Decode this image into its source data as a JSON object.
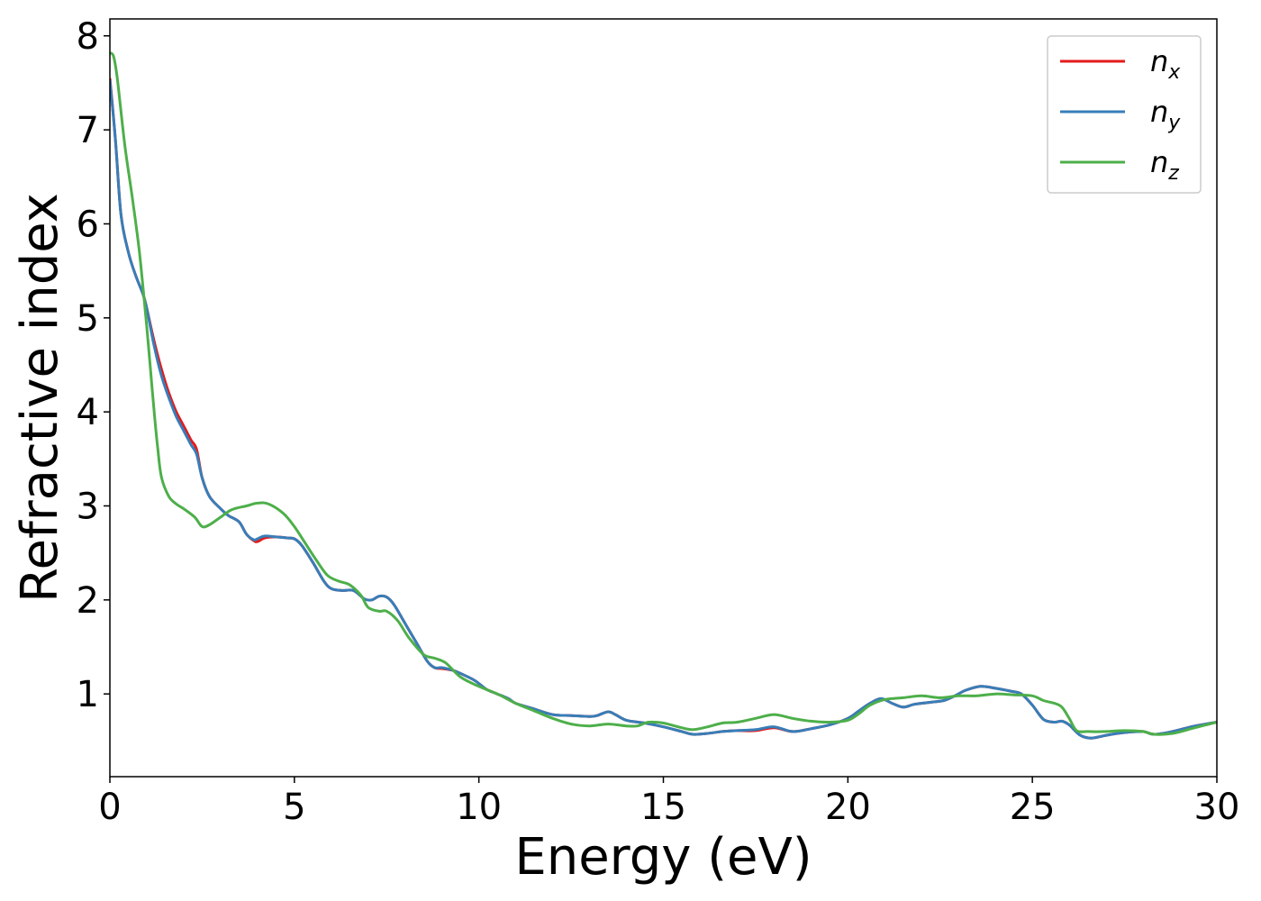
{
  "chart_data": {
    "type": "line",
    "xlabel": "Energy (eV)",
    "ylabel": "Refractive index",
    "xlim": [
      0,
      30
    ],
    "ylim": [
      0.12,
      8.18
    ],
    "xticks": [
      "0",
      "5",
      "10",
      "15",
      "20",
      "25",
      "30"
    ],
    "yticks": [
      "1",
      "2",
      "3",
      "4",
      "5",
      "6",
      "7",
      "8"
    ],
    "grid": false,
    "legend_position": "top-right",
    "series": [
      {
        "name": "n",
        "subscript": "x",
        "color": "#e41a1c",
        "x": [
          0,
          0.15,
          0.3,
          0.5,
          0.7,
          0.9,
          1.0,
          1.2,
          1.4,
          1.6,
          1.8,
          2.0,
          2.2,
          2.35,
          2.5,
          2.7,
          3.0,
          3.2,
          3.5,
          3.7,
          3.9,
          4.0,
          4.2,
          4.5,
          4.8,
          5.0,
          5.2,
          5.5,
          5.8,
          6.0,
          6.3,
          6.6,
          6.9,
          7.1,
          7.3,
          7.5,
          7.7,
          8.0,
          8.3,
          8.6,
          8.8,
          9.0,
          9.3,
          9.6,
          9.9,
          10.2,
          10.5,
          10.8,
          11.0,
          11.5,
          12.0,
          12.5,
          13.0,
          13.2,
          13.5,
          13.7,
          14.0,
          14.5,
          15.0,
          15.5,
          15.8,
          16.2,
          16.6,
          17.0,
          17.5,
          18.0,
          18.5,
          19.0,
          19.5,
          20.0,
          20.3,
          20.6,
          20.9,
          21.2,
          21.5,
          21.8,
          22.2,
          22.6,
          22.9,
          23.2,
          23.6,
          24.0,
          24.4,
          24.7,
          25.0,
          25.3,
          25.6,
          25.8,
          26.0,
          26.3,
          26.6,
          27.0,
          27.5,
          28.0,
          28.3,
          28.8,
          29.3,
          29.7,
          30.0
        ],
        "values": [
          7.55,
          6.9,
          6.1,
          5.7,
          5.45,
          5.25,
          5.1,
          4.75,
          4.45,
          4.2,
          4.0,
          3.85,
          3.7,
          3.6,
          3.3,
          3.1,
          2.97,
          2.9,
          2.83,
          2.7,
          2.63,
          2.62,
          2.66,
          2.67,
          2.66,
          2.65,
          2.58,
          2.4,
          2.2,
          2.12,
          2.1,
          2.1,
          2.01,
          2.0,
          2.04,
          2.03,
          1.95,
          1.75,
          1.55,
          1.35,
          1.28,
          1.27,
          1.25,
          1.2,
          1.14,
          1.05,
          1.0,
          0.95,
          0.9,
          0.84,
          0.78,
          0.77,
          0.76,
          0.77,
          0.81,
          0.78,
          0.72,
          0.69,
          0.65,
          0.6,
          0.57,
          0.58,
          0.6,
          0.61,
          0.61,
          0.64,
          0.6,
          0.63,
          0.67,
          0.74,
          0.82,
          0.9,
          0.95,
          0.9,
          0.86,
          0.89,
          0.91,
          0.93,
          0.98,
          1.04,
          1.08,
          1.06,
          1.03,
          1.0,
          0.88,
          0.73,
          0.7,
          0.71,
          0.67,
          0.56,
          0.53,
          0.56,
          0.59,
          0.6,
          0.57,
          0.6,
          0.65,
          0.68,
          0.7
        ]
      },
      {
        "name": "n",
        "subscript": "y",
        "color": "#377eb8",
        "x": [
          0,
          0.15,
          0.3,
          0.5,
          0.7,
          0.9,
          1.0,
          1.2,
          1.4,
          1.6,
          1.8,
          2.0,
          2.2,
          2.35,
          2.5,
          2.7,
          3.0,
          3.2,
          3.5,
          3.7,
          3.9,
          4.0,
          4.2,
          4.5,
          4.8,
          5.0,
          5.2,
          5.5,
          5.8,
          6.0,
          6.3,
          6.6,
          6.9,
          7.1,
          7.3,
          7.5,
          7.7,
          8.0,
          8.3,
          8.6,
          8.8,
          9.0,
          9.3,
          9.6,
          9.9,
          10.2,
          10.5,
          10.8,
          11.0,
          11.5,
          12.0,
          12.5,
          13.0,
          13.2,
          13.5,
          13.7,
          14.0,
          14.5,
          15.0,
          15.5,
          15.8,
          16.2,
          16.6,
          17.0,
          17.5,
          18.0,
          18.5,
          19.0,
          19.5,
          20.0,
          20.3,
          20.6,
          20.9,
          21.2,
          21.5,
          21.8,
          22.2,
          22.6,
          22.9,
          23.2,
          23.6,
          24.0,
          24.4,
          24.7,
          25.0,
          25.3,
          25.6,
          25.8,
          26.0,
          26.3,
          26.6,
          27.0,
          27.5,
          28.0,
          28.3,
          28.8,
          29.3,
          29.7,
          30.0
        ],
        "values": [
          7.53,
          6.9,
          6.1,
          5.7,
          5.45,
          5.25,
          5.1,
          4.7,
          4.38,
          4.15,
          3.95,
          3.8,
          3.65,
          3.55,
          3.3,
          3.1,
          2.97,
          2.9,
          2.83,
          2.7,
          2.64,
          2.65,
          2.68,
          2.67,
          2.66,
          2.65,
          2.58,
          2.4,
          2.2,
          2.12,
          2.1,
          2.1,
          2.01,
          2.0,
          2.04,
          2.03,
          1.95,
          1.75,
          1.55,
          1.35,
          1.28,
          1.28,
          1.25,
          1.2,
          1.14,
          1.05,
          1.0,
          0.95,
          0.9,
          0.84,
          0.78,
          0.77,
          0.76,
          0.77,
          0.81,
          0.78,
          0.72,
          0.69,
          0.65,
          0.6,
          0.57,
          0.58,
          0.6,
          0.61,
          0.62,
          0.65,
          0.6,
          0.63,
          0.67,
          0.74,
          0.82,
          0.9,
          0.95,
          0.9,
          0.86,
          0.89,
          0.91,
          0.93,
          0.98,
          1.04,
          1.08,
          1.06,
          1.03,
          1.0,
          0.88,
          0.73,
          0.7,
          0.71,
          0.67,
          0.56,
          0.53,
          0.56,
          0.59,
          0.6,
          0.57,
          0.6,
          0.65,
          0.68,
          0.7
        ]
      },
      {
        "name": "n",
        "subscript": "z",
        "color": "#4daf4a",
        "x": [
          0,
          0.1,
          0.2,
          0.4,
          0.6,
          0.8,
          1.0,
          1.1,
          1.2,
          1.3,
          1.4,
          1.6,
          1.8,
          2.0,
          2.3,
          2.5,
          2.7,
          3.0,
          3.3,
          3.7,
          4.0,
          4.3,
          4.7,
          5.0,
          5.3,
          5.6,
          5.9,
          6.2,
          6.5,
          6.8,
          7.0,
          7.3,
          7.5,
          7.8,
          8.1,
          8.5,
          8.8,
          9.1,
          9.5,
          10.0,
          10.5,
          11.0,
          11.5,
          12.0,
          12.5,
          13.0,
          13.5,
          14.0,
          14.3,
          14.6,
          15.0,
          15.5,
          15.8,
          16.2,
          16.6,
          17.0,
          17.5,
          18.0,
          18.5,
          19.0,
          19.5,
          20.0,
          20.3,
          20.6,
          21.0,
          21.5,
          22.0,
          22.5,
          23.0,
          23.5,
          24.0,
          24.5,
          25.0,
          25.3,
          25.6,
          25.8,
          26.0,
          26.2,
          26.5,
          27.0,
          27.5,
          28.0,
          28.3,
          28.8,
          29.3,
          29.7,
          30.0
        ],
        "values": [
          7.82,
          7.78,
          7.55,
          6.85,
          6.3,
          5.7,
          4.9,
          4.45,
          4.0,
          3.6,
          3.3,
          3.1,
          3.02,
          2.97,
          2.88,
          2.78,
          2.8,
          2.88,
          2.96,
          3.0,
          3.03,
          3.02,
          2.92,
          2.78,
          2.6,
          2.42,
          2.26,
          2.2,
          2.16,
          2.05,
          1.92,
          1.88,
          1.88,
          1.78,
          1.6,
          1.42,
          1.38,
          1.33,
          1.18,
          1.08,
          1.0,
          0.9,
          0.82,
          0.74,
          0.68,
          0.66,
          0.68,
          0.66,
          0.66,
          0.7,
          0.69,
          0.64,
          0.62,
          0.65,
          0.69,
          0.7,
          0.74,
          0.78,
          0.74,
          0.71,
          0.7,
          0.72,
          0.79,
          0.88,
          0.94,
          0.96,
          0.98,
          0.96,
          0.98,
          0.98,
          1.0,
          0.99,
          0.98,
          0.93,
          0.9,
          0.86,
          0.74,
          0.61,
          0.6,
          0.6,
          0.61,
          0.6,
          0.57,
          0.58,
          0.63,
          0.67,
          0.7
        ]
      }
    ]
  }
}
